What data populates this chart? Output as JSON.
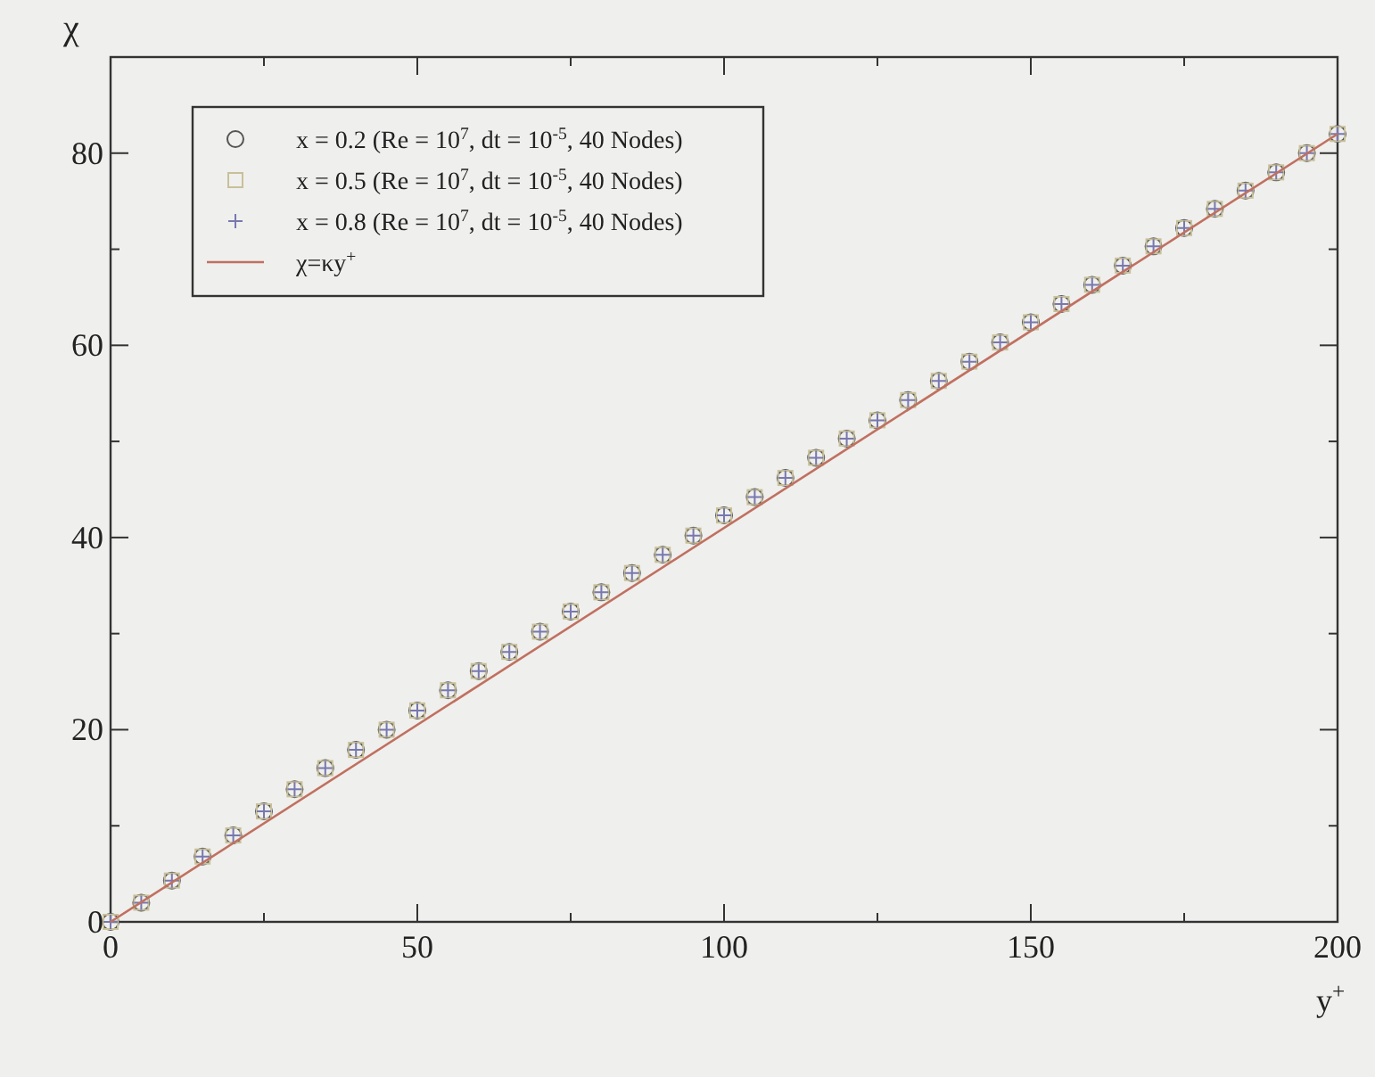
{
  "chart_data": {
    "type": "scatter",
    "xlabel": "y$^{+}$",
    "ylabel": "χ",
    "xlim": [
      0,
      200
    ],
    "ylim": [
      0,
      90
    ],
    "xticks": [
      0,
      {
        "value": 25,
        "label": null
      },
      50,
      {
        "value": 75,
        "label": null
      },
      100,
      {
        "value": 125,
        "label": null
      },
      150,
      {
        "value": 175,
        "label": null
      },
      200
    ],
    "yticks": [
      0,
      {
        "value": 10,
        "label": null
      },
      20,
      {
        "value": 30,
        "label": null
      },
      40,
      {
        "value": 50,
        "label": null
      },
      60,
      {
        "value": 70,
        "label": null
      },
      80
    ],
    "grid": false,
    "legend": "top left",
    "x": [
      0,
      5,
      10,
      15,
      20,
      25,
      30,
      35,
      40,
      45,
      50,
      55,
      60,
      65,
      70,
      75,
      80,
      85,
      90,
      95,
      100,
      105,
      110,
      115,
      120,
      125,
      130,
      135,
      140,
      145,
      150,
      155,
      160,
      165,
      170,
      175,
      180,
      185,
      190,
      195,
      200
    ],
    "series": [
      {
        "name": "x = 0.2 (Re = 10$^{7}$, dt  = 10$^{-5}$, 40 Nodes)",
        "color": "#555555",
        "marker": "circle",
        "values": [
          0,
          2.0,
          4.3,
          6.8,
          9.0,
          11.5,
          13.8,
          16.0,
          17.9,
          20.0,
          22.0,
          24.1,
          26.1,
          28.1,
          30.2,
          32.3,
          34.3,
          36.3,
          38.2,
          40.2,
          42.3,
          44.2,
          46.2,
          48.3,
          50.3,
          52.2,
          54.3,
          56.3,
          58.3,
          60.3,
          62.4,
          64.3,
          66.3,
          68.3,
          70.3,
          72.2,
          74.2,
          76.1,
          78.0,
          80.0,
          82.0
        ]
      },
      {
        "name": "x = 0.5 (Re = 10$^{7}$, dt  = 10$^{-5}$, 40 Nodes)",
        "color": "#c8c09a",
        "marker": "square",
        "values": [
          0,
          2.0,
          4.3,
          6.8,
          9.0,
          11.5,
          13.8,
          16.0,
          17.9,
          20.0,
          22.0,
          24.1,
          26.1,
          28.1,
          30.2,
          32.3,
          34.3,
          36.3,
          38.2,
          40.2,
          42.3,
          44.2,
          46.2,
          48.3,
          50.3,
          52.2,
          54.3,
          56.3,
          58.3,
          60.3,
          62.4,
          64.3,
          66.3,
          68.3,
          70.3,
          72.2,
          74.2,
          76.1,
          78.0,
          80.0,
          82.0
        ]
      },
      {
        "name": "x = 0.8 (Re = 10$^{7}$, dt  = 10$^{-5}$, 40 Nodes)",
        "color": "#7878b0",
        "marker": "cross",
        "values": [
          0,
          2.0,
          4.3,
          6.8,
          9.0,
          11.5,
          13.8,
          16.0,
          17.9,
          20.0,
          22.0,
          24.1,
          26.1,
          28.1,
          30.2,
          32.3,
          34.3,
          36.3,
          38.2,
          40.2,
          42.3,
          44.2,
          46.2,
          48.3,
          50.3,
          52.2,
          54.3,
          56.3,
          58.3,
          60.3,
          62.4,
          64.3,
          66.3,
          68.3,
          70.3,
          72.2,
          74.2,
          76.1,
          78.0,
          80.0,
          82.0
        ]
      },
      {
        "name": "χ=κy$^{+}$",
        "type": "line",
        "color": "#c07060",
        "marker": "none",
        "x": [
          0,
          200
        ],
        "values": [
          0,
          82
        ]
      }
    ]
  }
}
